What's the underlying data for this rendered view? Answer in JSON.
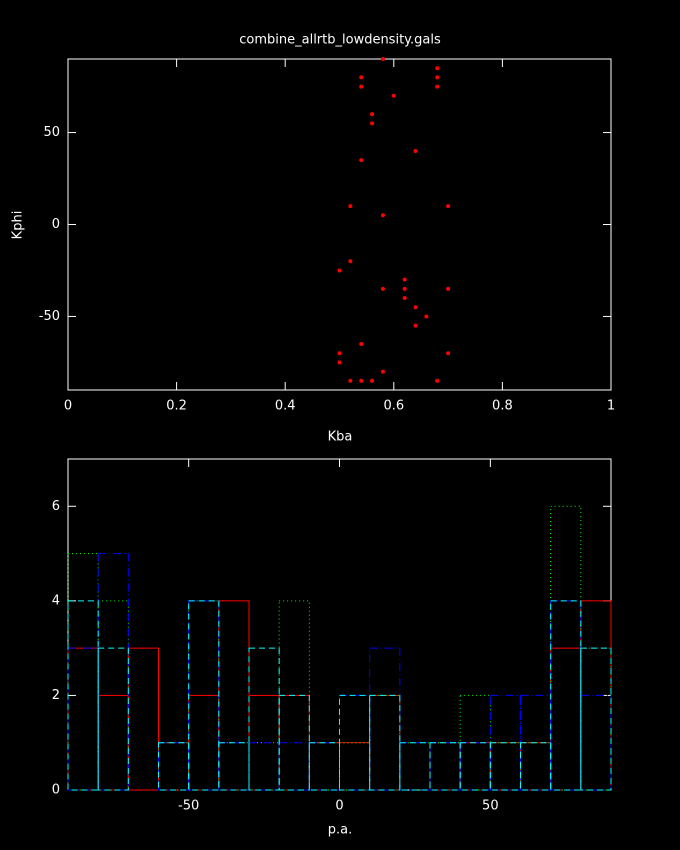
{
  "chart_data": [
    {
      "type": "scatter",
      "title": "combine_allrtb_lowdensity.gals",
      "x_label": "Kba",
      "y_label": "Kphi",
      "x": [
        0.58,
        0.54,
        0.54,
        0.68,
        0.68,
        0.68,
        0.6,
        0.56,
        0.56,
        0.64,
        0.54,
        0.52,
        0.58,
        0.7,
        0.52,
        0.5,
        0.62,
        0.62,
        0.58,
        0.7,
        0.62,
        0.64,
        0.66,
        0.64,
        0.54,
        0.5,
        0.7,
        0.5,
        0.58,
        0.52,
        0.54,
        0.56,
        0.68
      ],
      "values": [
        90,
        80,
        75,
        85,
        80,
        75,
        70,
        60,
        55,
        40,
        35,
        10,
        5,
        10,
        -20,
        -25,
        -30,
        -35,
        -35,
        -35,
        -40,
        -45,
        -50,
        -55,
        -65,
        -70,
        -70,
        -75,
        -80,
        -85,
        -85,
        -85,
        -85
      ],
      "color": "#ff0000",
      "xlim": [
        0,
        1
      ],
      "xticks": [
        0,
        0.2,
        0.4,
        0.6,
        0.8,
        1
      ],
      "ylim": [
        -90,
        90
      ],
      "yticks": [
        -50,
        0,
        50
      ]
    },
    {
      "type": "histogram",
      "x_label": "p.a.",
      "bins": [
        -90,
        -80,
        -70,
        -60,
        -50,
        -40,
        -30,
        -20,
        -10,
        0,
        10,
        20,
        30,
        40,
        50,
        60,
        70,
        80,
        90
      ],
      "series": [
        {
          "color": "#ff0000",
          "style": "solid",
          "values": [
            3,
            2,
            3,
            1,
            2,
            4,
            2,
            2,
            1,
            1,
            2,
            0,
            1,
            1,
            1,
            1,
            3,
            4
          ]
        },
        {
          "color": "#00ff00",
          "style": "dotted",
          "values": [
            5,
            4,
            0,
            1,
            4,
            1,
            1,
            4,
            1,
            1,
            2,
            1,
            1,
            2,
            1,
            1,
            6,
            3
          ]
        },
        {
          "color": "#0000ff",
          "style": "dashdot",
          "values": [
            3,
            5,
            0,
            1,
            4,
            1,
            1,
            1,
            1,
            2,
            3,
            1,
            1,
            1,
            2,
            2,
            4,
            2
          ]
        },
        {
          "color": "#00ffff",
          "style": "dashed",
          "values": [
            4,
            3,
            0,
            1,
            4,
            1,
            3,
            2,
            1,
            2,
            2,
            1,
            1,
            1,
            1,
            1,
            4,
            3
          ]
        }
      ],
      "xlim": [
        -90,
        90
      ],
      "xticks": [
        -50,
        0,
        50
      ],
      "ylim": [
        0,
        7
      ],
      "yticks": [
        0,
        2,
        4,
        6
      ]
    }
  ]
}
